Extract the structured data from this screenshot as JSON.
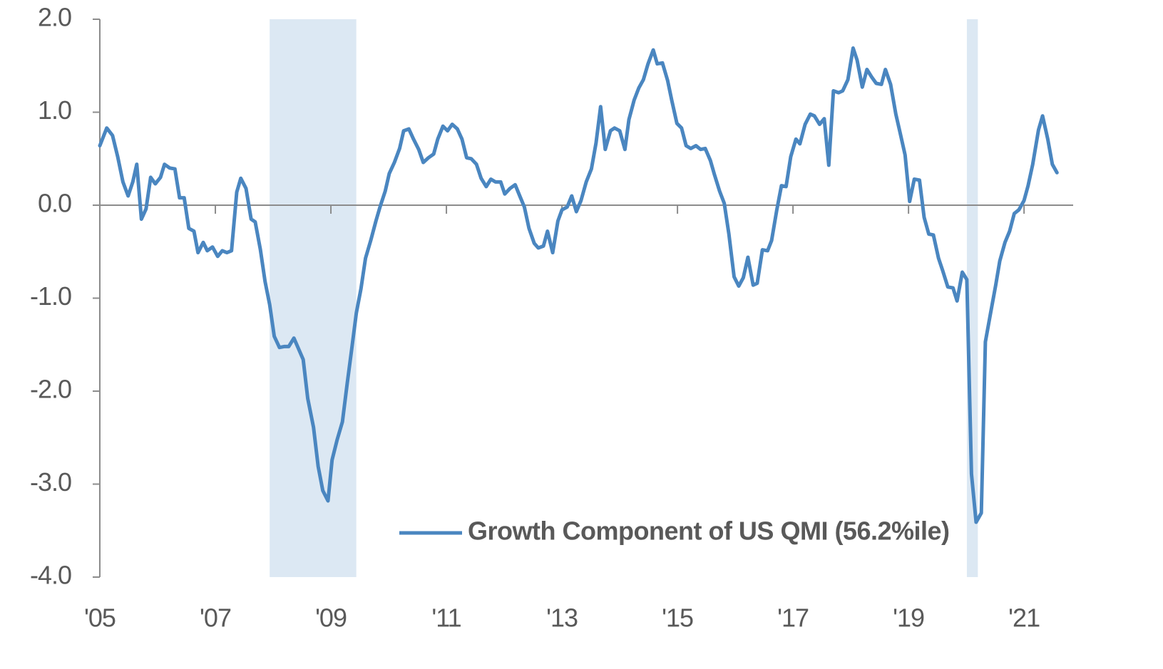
{
  "chart_data": {
    "type": "line",
    "xlim": [
      2005,
      2021.85
    ],
    "ylim": [
      -4,
      2
    ],
    "xticks": [
      {
        "value": 2005,
        "label": "'05"
      },
      {
        "value": 2007,
        "label": "'07"
      },
      {
        "value": 2009,
        "label": "'09"
      },
      {
        "value": 2011,
        "label": "'11"
      },
      {
        "value": 2013,
        "label": "'13"
      },
      {
        "value": 2015,
        "label": "'15"
      },
      {
        "value": 2017,
        "label": "'17"
      },
      {
        "value": 2019,
        "label": "'19"
      },
      {
        "value": 2021,
        "label": "'21"
      }
    ],
    "yticks": [
      {
        "value": 2,
        "label": "2.0"
      },
      {
        "value": 1,
        "label": "1.0"
      },
      {
        "value": 0,
        "label": "0.0"
      },
      {
        "value": -1,
        "label": "-1.0"
      },
      {
        "value": -2,
        "label": "-2.0"
      },
      {
        "value": -3,
        "label": "-3.0"
      },
      {
        "value": -4,
        "label": "-4.0"
      }
    ],
    "shaded_regions": [
      [
        2007.94,
        2009.44
      ],
      [
        2020.01,
        2020.2
      ]
    ],
    "shade_color": "#dce8f3",
    "legend": "bottom-center",
    "x": [
      2005.0,
      2005.12,
      2005.22,
      2005.31,
      2005.4,
      2005.49,
      2005.57,
      2005.64,
      2005.72,
      2005.8,
      2005.88,
      2005.96,
      2006.05,
      2006.12,
      2006.21,
      2006.3,
      2006.38,
      2006.46,
      2006.54,
      2006.63,
      2006.7,
      2006.79,
      2006.86,
      2006.95,
      2007.04,
      2007.12,
      2007.2,
      2007.28,
      2007.37,
      2007.44,
      2007.53,
      2007.62,
      2007.69,
      2007.78,
      2007.86,
      2007.94,
      2008.02,
      2008.11,
      2008.19,
      2008.27,
      2008.36,
      2008.43,
      2008.52,
      2008.6,
      2008.7,
      2008.78,
      2008.86,
      2008.95,
      2009.02,
      2009.11,
      2009.2,
      2009.28,
      2009.36,
      2009.44,
      2009.52,
      2009.6,
      2009.69,
      2009.78,
      2009.85,
      2009.94,
      2010.01,
      2010.1,
      2010.19,
      2010.26,
      2010.35,
      2010.43,
      2010.52,
      2010.6,
      2010.69,
      2010.78,
      2010.85,
      2010.94,
      2011.02,
      2011.1,
      2011.19,
      2011.27,
      2011.35,
      2011.43,
      2011.52,
      2011.6,
      2011.69,
      2011.77,
      2011.85,
      2011.94,
      2012.01,
      2012.1,
      2012.19,
      2012.27,
      2012.35,
      2012.43,
      2012.52,
      2012.59,
      2012.68,
      2012.75,
      2012.84,
      2012.93,
      2013.0,
      2013.09,
      2013.17,
      2013.25,
      2013.33,
      2013.42,
      2013.51,
      2013.59,
      2013.67,
      2013.75,
      2013.84,
      2013.91,
      2014.0,
      2014.09,
      2014.16,
      2014.25,
      2014.33,
      2014.41,
      2014.49,
      2014.58,
      2014.65,
      2014.74,
      2014.83,
      2014.9,
      2014.99,
      2015.07,
      2015.15,
      2015.23,
      2015.32,
      2015.4,
      2015.48,
      2015.57,
      2015.64,
      2015.73,
      2015.81,
      2015.89,
      2015.98,
      2016.06,
      2016.14,
      2016.22,
      2016.31,
      2016.38,
      2016.47,
      2016.56,
      2016.63,
      2016.72,
      2016.8,
      2016.88,
      2016.96,
      2017.05,
      2017.12,
      2017.21,
      2017.3,
      2017.37,
      2017.46,
      2017.54,
      2017.62,
      2017.7,
      2017.79,
      2017.86,
      2017.95,
      2018.04,
      2018.11,
      2018.2,
      2018.28,
      2018.36,
      2018.44,
      2018.53,
      2018.6,
      2018.69,
      2018.78,
      2018.85,
      2018.94,
      2019.02,
      2019.1,
      2019.19,
      2019.27,
      2019.35,
      2019.43,
      2019.52,
      2019.59,
      2019.68,
      2019.77,
      2019.84,
      2019.93,
      2020.01,
      2020.09,
      2020.17,
      2020.26,
      2020.33,
      2020.42,
      2020.51,
      2020.58,
      2020.67,
      2020.75,
      2020.83,
      2020.91,
      2021.0,
      2021.07,
      2021.15,
      2021.25,
      2021.32,
      2021.41,
      2021.49,
      2021.57
    ],
    "series": [
      {
        "name": "Growth Component of US QMI (56.2%ile)",
        "color": "#4a86c0",
        "values": [
          0.64,
          0.83,
          0.75,
          0.52,
          0.25,
          0.1,
          0.25,
          0.44,
          -0.15,
          -0.04,
          0.3,
          0.23,
          0.3,
          0.44,
          0.4,
          0.39,
          0.08,
          0.08,
          -0.25,
          -0.28,
          -0.51,
          -0.4,
          -0.49,
          -0.45,
          -0.55,
          -0.49,
          -0.51,
          -0.49,
          0.14,
          0.29,
          0.18,
          -0.15,
          -0.18,
          -0.48,
          -0.82,
          -1.07,
          -1.41,
          -1.53,
          -1.52,
          -1.52,
          -1.43,
          -1.53,
          -1.66,
          -2.08,
          -2.39,
          -2.81,
          -3.07,
          -3.18,
          -2.74,
          -2.52,
          -2.33,
          -1.93,
          -1.55,
          -1.16,
          -0.9,
          -0.57,
          -0.38,
          -0.17,
          -0.02,
          0.15,
          0.34,
          0.46,
          0.61,
          0.8,
          0.82,
          0.71,
          0.6,
          0.46,
          0.51,
          0.55,
          0.71,
          0.85,
          0.8,
          0.87,
          0.82,
          0.71,
          0.51,
          0.5,
          0.44,
          0.29,
          0.2,
          0.28,
          0.25,
          0.25,
          0.12,
          0.18,
          0.22,
          0.1,
          -0.02,
          -0.25,
          -0.41,
          -0.46,
          -0.44,
          -0.28,
          -0.51,
          -0.17,
          -0.05,
          -0.02,
          0.1,
          -0.07,
          0.05,
          0.25,
          0.39,
          0.67,
          1.06,
          0.6,
          0.8,
          0.83,
          0.8,
          0.6,
          0.92,
          1.13,
          1.26,
          1.35,
          1.52,
          1.67,
          1.52,
          1.53,
          1.34,
          1.13,
          0.88,
          0.83,
          0.64,
          0.61,
          0.64,
          0.6,
          0.61,
          0.48,
          0.33,
          0.15,
          0.02,
          -0.31,
          -0.77,
          -0.87,
          -0.78,
          -0.56,
          -0.86,
          -0.84,
          -0.48,
          -0.49,
          -0.38,
          -0.05,
          0.21,
          0.2,
          0.52,
          0.71,
          0.66,
          0.87,
          0.98,
          0.96,
          0.87,
          0.93,
          0.43,
          1.23,
          1.21,
          1.23,
          1.35,
          1.69,
          1.56,
          1.27,
          1.46,
          1.38,
          1.31,
          1.3,
          1.46,
          1.3,
          0.98,
          0.79,
          0.54,
          0.04,
          0.28,
          0.27,
          -0.13,
          -0.31,
          -0.32,
          -0.57,
          -0.7,
          -0.88,
          -0.89,
          -1.03,
          -0.72,
          -0.8,
          -2.89,
          -3.41,
          -3.31,
          -1.47,
          -1.16,
          -0.86,
          -0.6,
          -0.4,
          -0.28,
          -0.09,
          -0.05,
          0.05,
          0.21,
          0.44,
          0.81,
          0.96,
          0.71,
          0.44,
          0.35
        ]
      }
    ]
  }
}
